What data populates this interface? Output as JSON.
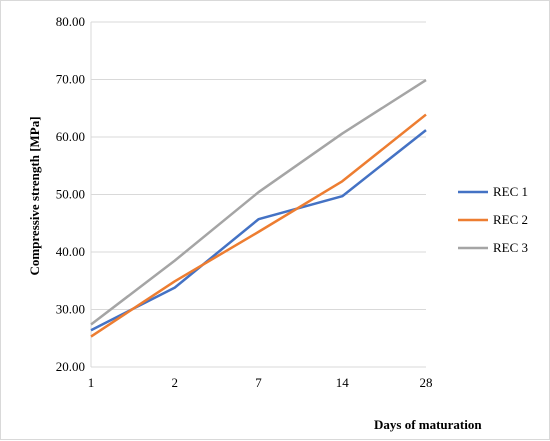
{
  "chart_data": {
    "type": "line",
    "categories": [
      "1",
      "2",
      "7",
      "14",
      "28"
    ],
    "series": [
      {
        "name": "REC 1",
        "values": [
          26.4,
          33.8,
          45.7,
          49.7,
          61.2
        ],
        "color": "#4472c4"
      },
      {
        "name": "REC 2",
        "values": [
          25.3,
          34.9,
          43.5,
          52.3,
          63.9
        ],
        "color": "#ed7d31"
      },
      {
        "name": "REC 3",
        "values": [
          27.4,
          38.5,
          50.4,
          60.6,
          69.9
        ],
        "color": "#a5a5a5"
      }
    ],
    "title": "",
    "xlabel": "Days of maturation",
    "ylabel": "Compressive strength [MPa]",
    "ylim": [
      20,
      80
    ],
    "yticks": [
      "20.00",
      "30.00",
      "40.00",
      "50.00",
      "60.00",
      "70.00",
      "80.00"
    ],
    "grid": "horizontal",
    "legend_position": "right"
  }
}
